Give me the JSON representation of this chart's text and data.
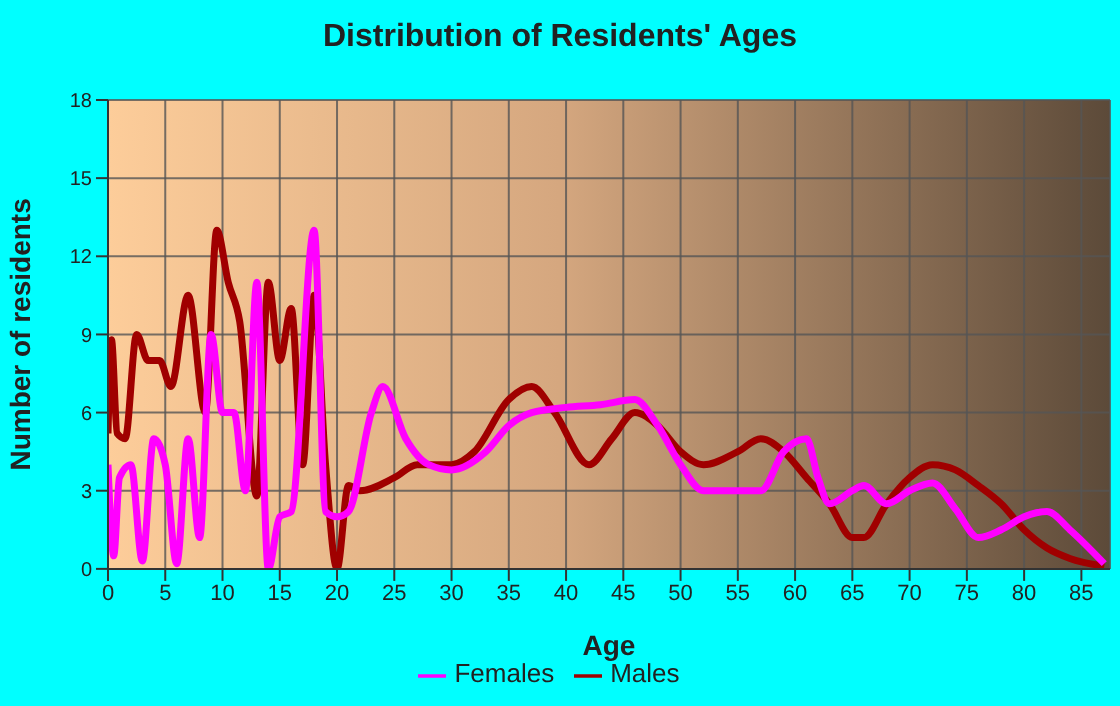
{
  "chart_data": {
    "type": "line",
    "title": "Distribution of Residents' Ages",
    "xlabel": "Age",
    "ylabel": "Number of residents",
    "xlim": [
      0,
      87.5
    ],
    "xticks": [
      0,
      5,
      10,
      15,
      20,
      25,
      30,
      35,
      40,
      45,
      50,
      55,
      60,
      65,
      70,
      75,
      80,
      85
    ],
    "ylim": [
      0,
      18
    ],
    "yticks": [
      0,
      3,
      6,
      9,
      12,
      15,
      18
    ],
    "grid": true,
    "legend": "bottom",
    "marker": "none",
    "line_style": "solid",
    "series": [
      {
        "name": "Males",
        "color": "#a00000",
        "x": [
          0,
          0.3,
          0.8,
          1.5,
          2.5,
          3.5,
          4.5,
          5.5,
          7,
          8.5,
          9.5,
          10.5,
          11.5,
          13,
          14,
          15,
          16,
          17,
          18,
          19,
          20,
          21,
          22,
          25,
          27,
          30,
          32,
          35,
          37,
          39,
          42,
          44,
          46,
          48,
          50,
          52,
          55,
          57,
          59,
          61,
          63,
          65,
          66,
          68,
          70,
          72,
          74,
          76,
          78,
          80,
          82,
          84,
          87
        ],
        "values": [
          5.2,
          8.8,
          5.2,
          5,
          9,
          8,
          8,
          7,
          10.5,
          6,
          13,
          11,
          9.5,
          2.8,
          11,
          8,
          10,
          4,
          10.5,
          4,
          0,
          3.2,
          3,
          3.5,
          4,
          4,
          4.5,
          6.5,
          7,
          6,
          4,
          5,
          6,
          5.5,
          4.5,
          4,
          4.5,
          5,
          4.5,
          3.5,
          2.5,
          1.2,
          1.2,
          2.5,
          3.5,
          4,
          3.8,
          3.2,
          2.5,
          1.5,
          0.8,
          0.4,
          0.1
        ]
      },
      {
        "name": "Females",
        "color": "#ff00ff",
        "x": [
          0,
          0.5,
          1,
          2,
          3,
          4,
          5,
          6,
          7,
          8,
          9,
          10,
          11,
          12,
          13,
          14,
          15,
          16,
          18,
          19,
          20,
          21,
          23,
          24,
          26,
          28,
          30,
          33,
          35,
          37,
          40,
          43,
          46,
          48,
          50,
          52,
          55,
          57,
          59,
          61,
          62,
          63,
          65,
          66,
          68,
          70,
          72,
          74,
          76,
          78,
          80,
          82,
          84,
          87
        ],
        "values": [
          4,
          0.5,
          3.5,
          4,
          0.3,
          5,
          4,
          0.2,
          5,
          1.2,
          9,
          6,
          6,
          3,
          11,
          0,
          2,
          2.2,
          13,
          2.2,
          2,
          2.2,
          6,
          7,
          5,
          4,
          3.8,
          4.5,
          5.5,
          6,
          6.2,
          6.3,
          6.5,
          5.5,
          4,
          3,
          3,
          3,
          4.5,
          5,
          3.5,
          2.5,
          3,
          3.2,
          2.5,
          3,
          3.3,
          2.3,
          1.2,
          1.5,
          2,
          2.2,
          1.5,
          0.2
        ]
      }
    ]
  }
}
